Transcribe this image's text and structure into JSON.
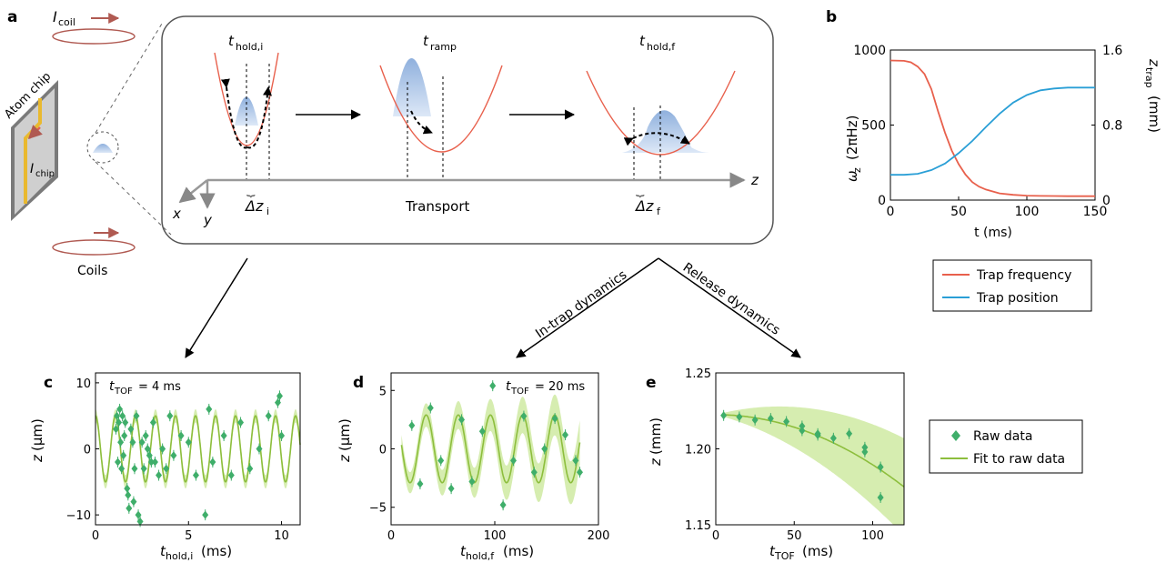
{
  "panel_labels": {
    "a": "a",
    "b": "b",
    "c": "c",
    "d": "d",
    "e": "e"
  },
  "panel_a": {
    "coil_current_label": "I",
    "coil_current_sub": "coil",
    "chip_label": "Atom chip",
    "chip_current_label": "I",
    "chip_current_sub": "chip",
    "coils_label": "Coils",
    "stages": [
      {
        "label": "t",
        "sub": "hold,i"
      },
      {
        "label": "t",
        "sub": "ramp"
      },
      {
        "label": "t",
        "sub": "hold,f"
      }
    ],
    "delta_i": "Δz",
    "delta_i_sub": "i",
    "delta_f": "Δz",
    "delta_f_sub": "f",
    "transport_label": "Transport",
    "axis_z": "z",
    "axis_x": "x",
    "axis_y": "y",
    "branch_left": "In-trap dynamics",
    "branch_right": "Release dynamics"
  },
  "legend_b": {
    "items": [
      {
        "label": "Trap frequency",
        "color": "#e8604c"
      },
      {
        "label": "Trap position",
        "color": "#2a9fd6"
      }
    ]
  },
  "legend_e": {
    "items": [
      {
        "label": "Raw data",
        "color": "#3fae6a"
      },
      {
        "label": "Fit to raw data",
        "color": "#8dbe3d"
      }
    ]
  },
  "colors": {
    "red": "#e8604c",
    "blue": "#2a9fd6",
    "green": "#3fae6a",
    "lime": "#8dbe3d",
    "band": "#d6edb0"
  },
  "chart_data": [
    {
      "id": "b",
      "type": "line",
      "xlabel": "t (ms)",
      "ylabel_left": "ω",
      "ylabel_left_sub": "z",
      "ylabel_left_unit": "(2πHz)",
      "ylabel_right": "z",
      "ylabel_right_sub": "trap",
      "ylabel_right_unit": "(mm)",
      "xlim": [
        0,
        150
      ],
      "ylim_left": [
        0,
        1000
      ],
      "ylim_right": [
        0,
        1.6
      ],
      "xticks": [
        "0",
        "50",
        "100",
        "150"
      ],
      "yticks_left": [
        "0",
        "500",
        "1000"
      ],
      "yticks_right": [
        "0",
        "0.8",
        "1.6"
      ],
      "series": [
        {
          "name": "Trap frequency",
          "axis": "left",
          "x": [
            0,
            10,
            15,
            20,
            25,
            30,
            35,
            40,
            45,
            50,
            55,
            60,
            65,
            70,
            80,
            90,
            100,
            110,
            120,
            130,
            140,
            150
          ],
          "values": [
            930,
            928,
            918,
            890,
            840,
            740,
            590,
            450,
            330,
            240,
            170,
            120,
            90,
            70,
            45,
            35,
            30,
            28,
            27,
            26,
            26,
            26
          ]
        },
        {
          "name": "Trap position",
          "axis": "right",
          "x": [
            0,
            10,
            20,
            30,
            40,
            50,
            60,
            70,
            80,
            90,
            100,
            110,
            120,
            130,
            140,
            150
          ],
          "values": [
            0.27,
            0.27,
            0.28,
            0.32,
            0.39,
            0.5,
            0.63,
            0.78,
            0.92,
            1.04,
            1.12,
            1.17,
            1.19,
            1.2,
            1.2,
            1.2
          ]
        }
      ]
    },
    {
      "id": "c",
      "type": "scatter",
      "annotation": "t",
      "annotation_sub": "TOF",
      "annotation_value": "= 4 ms",
      "xlabel": "t",
      "xlabel_sub": "hold,i",
      "xlabel_unit": "(ms)",
      "ylabel": "z",
      "ylabel_unit": "(μm)",
      "xlim": [
        0,
        11
      ],
      "ylim": [
        -11.5,
        11.5
      ],
      "xticks": [
        "0",
        "5",
        "10"
      ],
      "yticks": [
        "−10",
        "0",
        "10"
      ],
      "fit": {
        "amplitude": 5,
        "frequency_per_ms": 0.93,
        "phase": 1.57,
        "offset": 0,
        "band": 1.0
      },
      "points": {
        "x": [
          1.1,
          1.15,
          1.2,
          1.25,
          1.3,
          1.35,
          1.4,
          1.45,
          1.5,
          1.55,
          1.6,
          1.7,
          1.75,
          1.8,
          1.9,
          2.0,
          2.05,
          2.1,
          2.2,
          2.3,
          2.4,
          2.5,
          2.6,
          2.7,
          2.8,
          2.9,
          3.0,
          3.1,
          3.2,
          3.4,
          3.6,
          3.8,
          4.0,
          4.2,
          4.6,
          5.0,
          5.4,
          5.9,
          6.1,
          6.3,
          6.9,
          7.3,
          7.8,
          8.3,
          8.8,
          9.3,
          9.8,
          9.9,
          10.0
        ],
        "y": [
          3,
          5,
          -2,
          4,
          6,
          1,
          -3,
          5,
          -1,
          2,
          4,
          -6,
          -7,
          -9,
          3,
          1,
          -8,
          -3,
          5,
          -10,
          -11,
          1,
          -3,
          2,
          0,
          -1,
          -2,
          4,
          -2,
          -4,
          0,
          -3,
          5,
          -1,
          2,
          1,
          -4,
          -10,
          6,
          -2,
          2,
          -4,
          4,
          -3,
          0,
          5,
          7,
          8,
          2
        ]
      }
    },
    {
      "id": "d",
      "type": "scatter",
      "annotation": "t",
      "annotation_sub": "TOF",
      "annotation_value": "= 20 ms",
      "xlabel": "t",
      "xlabel_sub": "hold,f",
      "xlabel_unit": "(ms)",
      "ylabel": "z",
      "ylabel_unit": "(μm)",
      "xlim": [
        0,
        200
      ],
      "ylim": [
        -6.5,
        6.5
      ],
      "xticks": [
        "0",
        "100",
        "200"
      ],
      "yticks": [
        "−5",
        "0",
        "5"
      ],
      "fit": {
        "amplitude": 2.9,
        "period_ms": 31,
        "phase": 1.0,
        "offset": 0,
        "band_base": 0.8,
        "band_growth": 0.006
      },
      "points": {
        "x": [
          20,
          28,
          38,
          48,
          58,
          68,
          78,
          88,
          98,
          108,
          118,
          128,
          138,
          148,
          158,
          168,
          178,
          182
        ],
        "y": [
          2,
          -3,
          3.5,
          -1,
          -3.4,
          2.5,
          -2.8,
          1.5,
          5.4,
          -4.8,
          -1,
          2.8,
          -2,
          0,
          2.6,
          1.2,
          -1,
          -2
        ]
      }
    },
    {
      "id": "e",
      "type": "scatter",
      "xlabel": "t",
      "xlabel_sub": "TOF",
      "xlabel_unit": "(ms)",
      "ylabel": "z",
      "ylabel_unit": "(mm)",
      "xlim": [
        0,
        120
      ],
      "ylim": [
        1.15,
        1.25
      ],
      "xticks": [
        "0",
        "50",
        "100"
      ],
      "yticks": [
        "1.15",
        "1.20",
        "1.25"
      ],
      "fit": {
        "z0": 1.2225,
        "a": -3.3e-06
      },
      "band_halfwidth_at_120": 0.032,
      "points": {
        "x": [
          5,
          15,
          25,
          35,
          45,
          55,
          55,
          65,
          65,
          75,
          85,
          95,
          95,
          105,
          105
        ],
        "y": [
          1.222,
          1.221,
          1.219,
          1.22,
          1.218,
          1.215,
          1.212,
          1.21,
          1.209,
          1.207,
          1.21,
          1.201,
          1.198,
          1.188,
          1.168
        ]
      }
    }
  ]
}
